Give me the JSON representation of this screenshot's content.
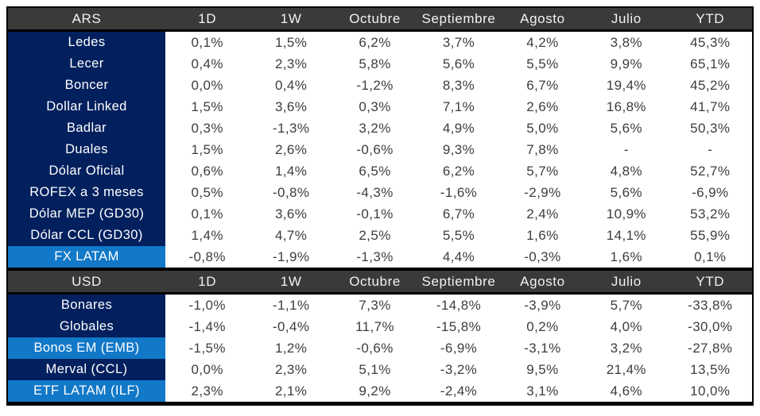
{
  "chart_data": [
    {
      "type": "table",
      "title": "ARS",
      "columns": [
        "1D",
        "1W",
        "Octubre",
        "Septiembre",
        "Agosto",
        "Julio",
        "YTD"
      ],
      "rows": [
        {
          "label": "Ledes",
          "highlight": false,
          "values": [
            "0,1%",
            "1,5%",
            "6,2%",
            "3,7%",
            "4,2%",
            "3,8%",
            "45,3%"
          ]
        },
        {
          "label": "Lecer",
          "highlight": false,
          "values": [
            "0,4%",
            "2,3%",
            "5,8%",
            "5,6%",
            "5,5%",
            "9,9%",
            "65,1%"
          ]
        },
        {
          "label": "Boncer",
          "highlight": false,
          "values": [
            "0,0%",
            "0,4%",
            "-1,2%",
            "8,3%",
            "6,7%",
            "19,4%",
            "45,2%"
          ]
        },
        {
          "label": "Dollar Linked",
          "highlight": false,
          "values": [
            "1,5%",
            "3,6%",
            "0,3%",
            "7,1%",
            "2,6%",
            "16,8%",
            "41,7%"
          ]
        },
        {
          "label": "Badlar",
          "highlight": false,
          "values": [
            "0,3%",
            "-1,3%",
            "3,2%",
            "4,9%",
            "5,0%",
            "5,6%",
            "50,3%"
          ]
        },
        {
          "label": "Duales",
          "highlight": false,
          "values": [
            "1,5%",
            "2,6%",
            "-0,6%",
            "9,3%",
            "7,8%",
            "-",
            "-"
          ]
        },
        {
          "label": "Dólar Oficial",
          "highlight": false,
          "values": [
            "0,6%",
            "1,4%",
            "6,5%",
            "6,2%",
            "5,7%",
            "4,8%",
            "52,7%"
          ]
        },
        {
          "label": "ROFEX a 3 meses",
          "highlight": false,
          "values": [
            "0,5%",
            "-0,8%",
            "-4,3%",
            "-1,6%",
            "-2,9%",
            "5,6%",
            "-6,9%"
          ]
        },
        {
          "label": "Dólar MEP (GD30)",
          "highlight": false,
          "values": [
            "0,1%",
            "3,6%",
            "-0,1%",
            "6,7%",
            "2,4%",
            "10,9%",
            "53,2%"
          ]
        },
        {
          "label": "Dólar CCL (GD30)",
          "highlight": false,
          "values": [
            "1,4%",
            "4,7%",
            "2,5%",
            "5,5%",
            "1,6%",
            "14,1%",
            "55,9%"
          ]
        },
        {
          "label": "FX LATAM",
          "highlight": true,
          "values": [
            "-0,8%",
            "-1,9%",
            "-1,3%",
            "4,4%",
            "-0,3%",
            "1,6%",
            "0,1%"
          ]
        }
      ]
    },
    {
      "type": "table",
      "title": "USD",
      "columns": [
        "1D",
        "1W",
        "Octubre",
        "Septiembre",
        "Agosto",
        "Julio",
        "YTD"
      ],
      "rows": [
        {
          "label": "Bonares",
          "highlight": false,
          "values": [
            "-1,0%",
            "-1,1%",
            "7,3%",
            "-14,8%",
            "-3,9%",
            "5,7%",
            "-33,8%"
          ]
        },
        {
          "label": "Globales",
          "highlight": false,
          "values": [
            "-1,4%",
            "-0,4%",
            "11,7%",
            "-15,8%",
            "0,2%",
            "4,0%",
            "-30,0%"
          ]
        },
        {
          "label": "Bonos EM (EMB)",
          "highlight": true,
          "values": [
            "-1,5%",
            "1,2%",
            "-0,6%",
            "-6,9%",
            "-3,1%",
            "3,2%",
            "-27,8%"
          ]
        },
        {
          "label": "Merval (CCL)",
          "highlight": false,
          "values": [
            "0,0%",
            "2,3%",
            "5,1%",
            "-3,2%",
            "9,5%",
            "21,4%",
            "13,5%"
          ]
        },
        {
          "label": "ETF LATAM (ILF)",
          "highlight": true,
          "values": [
            "2,3%",
            "2,1%",
            "9,2%",
            "-2,4%",
            "3,1%",
            "4,6%",
            "10,0%"
          ]
        }
      ]
    }
  ],
  "colors": {
    "header_bg": "#3b3a3a",
    "header_text": "#f2f2f2",
    "label_bg_navy": "#02205e",
    "label_highlight_bg": "#1278c8",
    "label_text": "#ffffff",
    "value_text": "#3d3d3d",
    "table_border": "#000000",
    "page_bg": "#ffffff"
  }
}
